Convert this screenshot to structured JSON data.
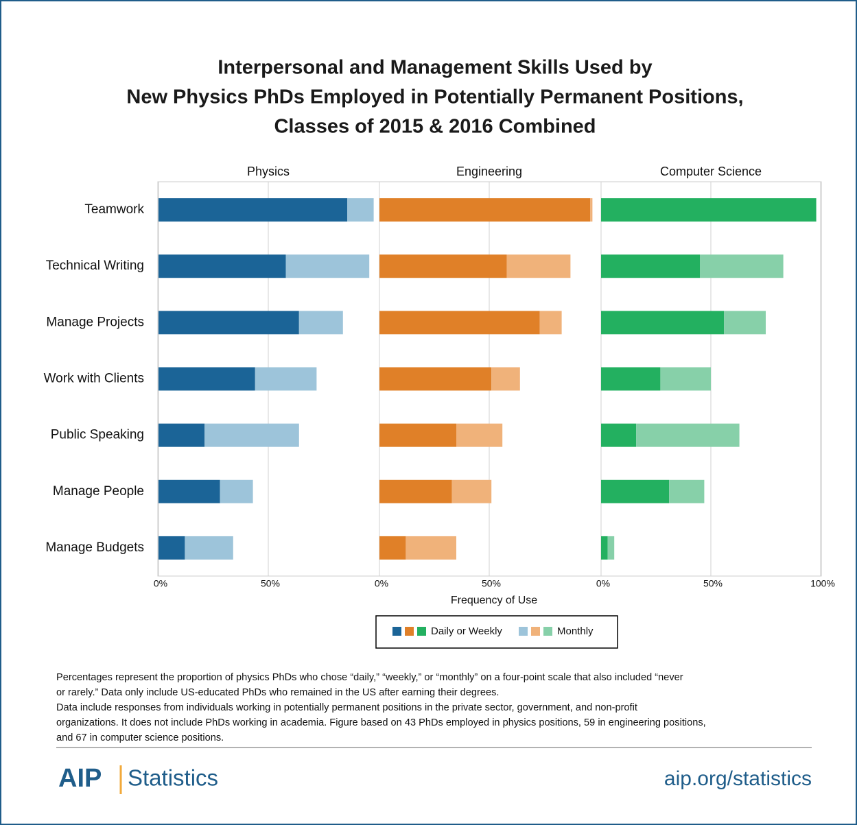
{
  "title": [
    "Interpersonal and Management Skills Used by",
    "New Physics PhDs Employed in Potentially Permanent Positions,",
    "Classes of 2015 & 2016 Combined"
  ],
  "x_label": "Frequency of Use",
  "legend": [
    "Daily or Weekly",
    "Monthly"
  ],
  "chart_data": [
    {
      "type": "bar",
      "orientation": "horizontal",
      "stacked": true,
      "title": "Physics",
      "categories": [
        "Teamwork",
        "Technical Writing",
        "Manage Projects",
        "Work with Clients",
        "Public Speaking",
        "Manage People",
        "Manage Budgets"
      ],
      "series": [
        {
          "color": "#1b6497",
          "values": [
            86,
            58,
            64,
            44,
            21,
            28,
            12
          ]
        },
        {
          "color": "#9dc4da",
          "values": [
            12,
            38,
            20,
            28,
            43,
            15,
            22
          ]
        }
      ],
      "xlim": [
        0,
        100
      ],
      "xticks": [
        {
          "value": 0,
          "label": "0%"
        },
        {
          "value": 50,
          "label": "50%"
        }
      ],
      "grid": true
    },
    {
      "type": "bar",
      "orientation": "horizontal",
      "stacked": true,
      "title": "Engineering",
      "categories": [
        "Teamwork",
        "Technical Writing",
        "Manage Projects",
        "Work with Clients",
        "Public Speaking",
        "Manage People",
        "Manage Budgets"
      ],
      "series": [
        {
          "color": "#e08028",
          "values": [
            96,
            58,
            73,
            51,
            35,
            33,
            12
          ]
        },
        {
          "color": "#f0b27a",
          "values": [
            1,
            29,
            10,
            13,
            21,
            18,
            23
          ]
        }
      ],
      "xlim": [
        0,
        100
      ],
      "xticks": [
        {
          "value": 0,
          "label": "0%"
        },
        {
          "value": 50,
          "label": "50%"
        }
      ],
      "grid": true
    },
    {
      "type": "bar",
      "orientation": "horizontal",
      "stacked": true,
      "title": "Computer Science",
      "categories": [
        "Teamwork",
        "Technical Writing",
        "Manage Projects",
        "Work with Clients",
        "Public Speaking",
        "Manage People",
        "Manage Budgets"
      ],
      "series": [
        {
          "color": "#23b060",
          "values": [
            98,
            45,
            56,
            27,
            16,
            31,
            3
          ]
        },
        {
          "color": "#87d0a9",
          "values": [
            0,
            38,
            19,
            23,
            47,
            16,
            3
          ]
        }
      ],
      "xlim": [
        0,
        100
      ],
      "xticks": [
        {
          "value": 0,
          "label": "0%"
        },
        {
          "value": 50,
          "label": "50%"
        },
        {
          "value": 100,
          "label": "100%"
        }
      ],
      "grid": true
    }
  ],
  "notes": [
    "Percentages represent the proportion of physics PhDs who chose “daily,” “weekly,” or “monthly” on a four-point scale that also included “never",
    "or rarely.” Data only include US-educated PhDs who remained in the US after earning their degrees.",
    "Data include responses from individuals working in potentially permanent positions in the private sector, government, and non-profit",
    "organizations. It does not include PhDs working in academia. Figure based on 43 PhDs employed in physics positions,  59 in engineering positions,",
    "and 67 in computer science positions."
  ],
  "footer": {
    "logo": "AIP",
    "logo_text": "Statistics",
    "url": "aip.org/statistics"
  }
}
